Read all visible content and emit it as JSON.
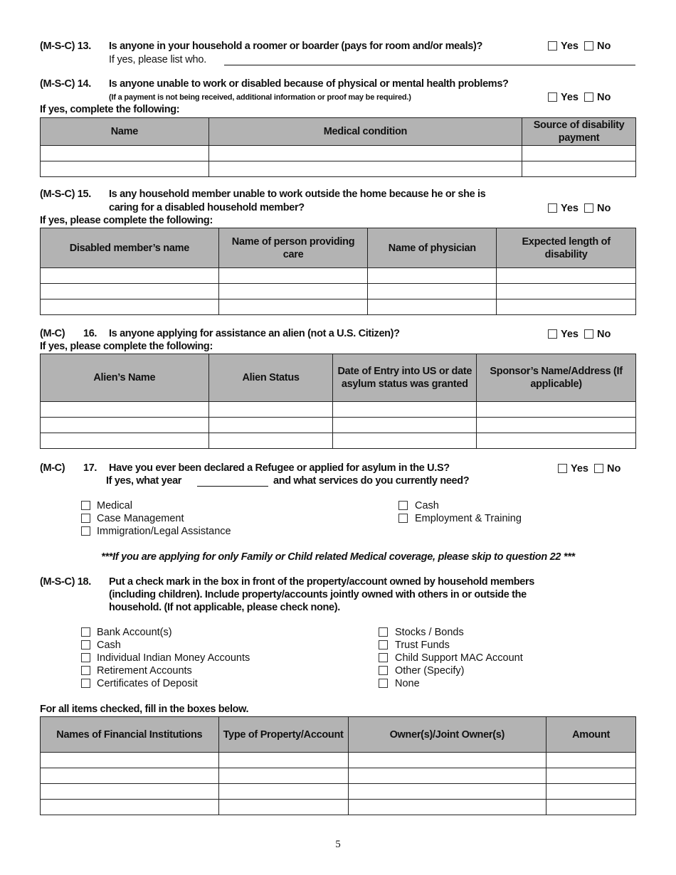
{
  "yes_label": "Yes",
  "no_label": "No",
  "q13": {
    "code": "(M-S-C) 13.",
    "question": "Is anyone in your household a roomer or boarder (pays for room and/or meals)?",
    "followup": "If yes, please list who."
  },
  "q14": {
    "code": "(M-S-C) 14.",
    "question": "Is anyone unable to work or disabled because of physical or mental health problems?",
    "note": "(If a payment is not being received, additional information or proof may be required.)",
    "instruction": "If yes, complete the following:",
    "table": {
      "headers": [
        "Name",
        "Medical condition",
        "Source of disability payment"
      ],
      "rows": [
        [
          "",
          "",
          ""
        ],
        [
          "",
          "",
          ""
        ]
      ]
    }
  },
  "q15": {
    "code": "(M-S-C) 15.",
    "question_line1": "Is any household member unable to work outside the home because he or she is",
    "question_line2": "caring for a disabled household member?",
    "instruction": "If yes, please complete the following:",
    "table": {
      "headers": [
        "Disabled member’s name",
        "Name of person providing care",
        "Name of physician",
        "Expected length of disability"
      ],
      "rows": [
        [
          "",
          "",
          "",
          ""
        ],
        [
          "",
          "",
          "",
          ""
        ],
        [
          "",
          "",
          "",
          ""
        ]
      ]
    }
  },
  "q16": {
    "code": "(M-C)",
    "number": "16.",
    "question": "Is anyone applying for assistance an alien (not a U.S. Citizen)?",
    "instruction": "If yes, please complete the following:",
    "table": {
      "headers": [
        "Alien’s Name",
        "Alien Status",
        "Date of Entry into US or date asylum status was granted",
        "Sponsor’s Name/Address (If applicable)"
      ],
      "rows": [
        [
          "",
          "",
          "",
          ""
        ],
        [
          "",
          "",
          "",
          ""
        ],
        [
          "",
          "",
          "",
          ""
        ]
      ]
    }
  },
  "q17": {
    "code": "(M-C)",
    "number": "17.",
    "question": "Have you ever been declared a Refugee or applied for asylum in the U.S?",
    "followup_a": "If yes, what year",
    "year_value": "",
    "followup_b": "and what services do you currently need?",
    "options_left": [
      "Medical",
      "Case Management",
      "Immigration/Legal Assistance"
    ],
    "options_right": [
      "Cash",
      "Employment & Training"
    ]
  },
  "skip_note": "***If you are applying for only Family or Child related Medical coverage, please skip to question 22 ***",
  "q18": {
    "code": "(M-S-C) 18.",
    "line1": "Put a check mark in the box in front of the property/account owned by household members",
    "line2": "(including children).  Include property/accounts jointly owned with others in or outside the",
    "line3": "household. (If not applicable, please check none).",
    "options_left": [
      "Bank Account(s)",
      "Cash",
      "Individual Indian Money Accounts",
      "Retirement Accounts",
      "Certificates of Deposit"
    ],
    "options_right": [
      "Stocks / Bonds",
      "Trust Funds",
      "Child Support MAC Account",
      "Other (Specify)",
      "None"
    ],
    "instruction": "For all items checked, fill in the boxes below.",
    "table": {
      "headers": [
        "Names of Financial Institutions",
        "Type of Property/Account",
        "Owner(s)/Joint Owner(s)",
        "Amount"
      ],
      "rows": [
        [
          "",
          "",
          "",
          ""
        ],
        [
          "",
          "",
          "",
          ""
        ],
        [
          "",
          "",
          "",
          ""
        ],
        [
          "",
          "",
          "",
          ""
        ]
      ]
    }
  },
  "page_number": "5"
}
